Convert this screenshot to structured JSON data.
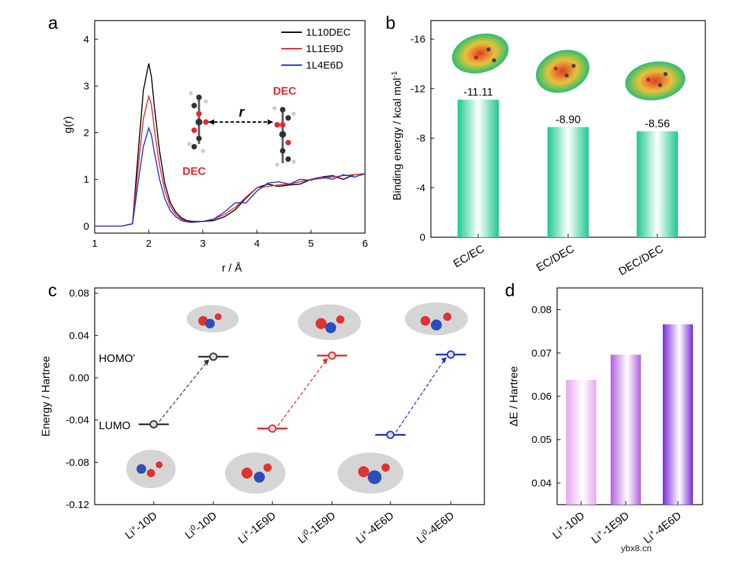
{
  "watermark": "ybx8.cn",
  "chart_data": [
    {
      "panel": "a",
      "type": "line",
      "xlabel": "r / Å",
      "ylabel": "g(r)",
      "xlim": [
        1,
        6
      ],
      "ylim": [
        -0.15,
        4.4
      ],
      "xticks": [
        "1",
        "2",
        "3",
        "4",
        "5",
        "6"
      ],
      "yticks": [
        "0",
        "1",
        "2",
        "3",
        "4"
      ],
      "inset": {
        "label_r": "r",
        "label_left": "DEC",
        "label_right": "DEC"
      },
      "series": [
        {
          "name": "1L10DEC",
          "color": "#000000",
          "x": [
            1.0,
            1.5,
            1.7,
            1.8,
            1.9,
            2.0,
            2.05,
            2.1,
            2.2,
            2.3,
            2.4,
            2.5,
            2.6,
            2.7,
            2.8,
            3.0,
            3.2,
            3.4,
            3.6,
            3.8,
            4.0,
            4.2,
            4.4,
            4.6,
            4.8,
            5.0,
            5.2,
            5.4,
            5.6,
            5.8,
            6.0
          ],
          "y": [
            0,
            0,
            0.05,
            1.5,
            2.9,
            3.48,
            3.2,
            2.6,
            1.6,
            0.9,
            0.5,
            0.3,
            0.18,
            0.12,
            0.1,
            0.1,
            0.12,
            0.2,
            0.35,
            0.6,
            0.82,
            0.9,
            0.85,
            0.88,
            0.9,
            1.0,
            1.05,
            1.08,
            1.0,
            1.1,
            1.12
          ]
        },
        {
          "name": "1L1E9D",
          "color": "#e8262a",
          "x": [
            1.0,
            1.5,
            1.7,
            1.8,
            1.9,
            2.0,
            2.05,
            2.1,
            2.2,
            2.3,
            2.4,
            2.5,
            2.6,
            2.7,
            2.8,
            3.0,
            3.2,
            3.4,
            3.6,
            3.8,
            4.0,
            4.2,
            4.4,
            4.6,
            4.8,
            5.0,
            5.2,
            5.4,
            5.6,
            5.8,
            6.0
          ],
          "y": [
            0,
            0,
            0.05,
            1.2,
            2.3,
            2.78,
            2.6,
            2.1,
            1.3,
            0.75,
            0.42,
            0.25,
            0.15,
            0.1,
            0.08,
            0.1,
            0.15,
            0.25,
            0.4,
            0.62,
            0.82,
            0.85,
            0.88,
            0.9,
            0.95,
            1.0,
            1.02,
            1.05,
            1.08,
            1.1,
            1.12
          ]
        },
        {
          "name": "1L4E6D",
          "color": "#1f2ee0",
          "x": [
            1.0,
            1.5,
            1.7,
            1.8,
            1.9,
            2.0,
            2.05,
            2.1,
            2.2,
            2.3,
            2.4,
            2.5,
            2.6,
            2.7,
            2.8,
            3.0,
            3.2,
            3.4,
            3.6,
            3.8,
            4.0,
            4.2,
            4.4,
            4.6,
            4.8,
            5.0,
            5.2,
            5.4,
            5.6,
            5.8,
            6.0
          ],
          "y": [
            0,
            0,
            0.05,
            0.9,
            1.7,
            2.1,
            1.95,
            1.6,
            1.0,
            0.58,
            0.33,
            0.2,
            0.12,
            0.09,
            0.08,
            0.1,
            0.15,
            0.3,
            0.5,
            0.5,
            0.75,
            0.92,
            0.95,
            0.9,
            1.0,
            0.98,
            1.05,
            1.0,
            1.1,
            1.05,
            1.12
          ]
        }
      ]
    },
    {
      "panel": "b",
      "type": "bar",
      "ylabel": "Binding energy /  kcal mol",
      "ylabel_sup": "-1",
      "ylim": [
        0,
        -17.5
      ],
      "yticks": [
        "0",
        "-4",
        "-8",
        "-12",
        "-16"
      ],
      "categories": [
        "EC/EC",
        "EC/DEC",
        "DEC/DEC"
      ],
      "values": [
        -11.11,
        -8.9,
        -8.56
      ],
      "labels": [
        "-11.11",
        "-8.90",
        "-8.56"
      ],
      "color": "#1dc98a"
    },
    {
      "panel": "c",
      "type": "scatter",
      "ylabel": "Energy / Hartree",
      "ylim": [
        -0.12,
        0.085
      ],
      "yticks": [
        "0.08",
        "0.04",
        "0.00",
        "-0.04",
        "-0.08",
        "-0.12"
      ],
      "level_labels": [
        "HOMO'",
        "LUMO"
      ],
      "categories": [
        {
          "main": "Li",
          "sup": "+",
          "rest": "-10D"
        },
        {
          "main": "Li",
          "sup": "0",
          "rest": "-10D"
        },
        {
          "main": "Li",
          "sup": "+",
          "rest": "-1E9D"
        },
        {
          "main": "Li",
          "sup": "0",
          "rest": "-1E9D"
        },
        {
          "main": "Li",
          "sup": "+",
          "rest": "-4E6D"
        },
        {
          "main": "Li",
          "sup": "0",
          "rest": "-4E6D"
        }
      ],
      "series": [
        {
          "name": "10D",
          "color": "#333333",
          "lumo": -0.044,
          "homo": 0.02
        },
        {
          "name": "1E9D",
          "color": "#e8262a",
          "lumo": -0.048,
          "homo": 0.021
        },
        {
          "name": "4E6D",
          "color": "#1f2ee0",
          "lumo": -0.054,
          "homo": 0.022
        }
      ]
    },
    {
      "panel": "d",
      "type": "bar",
      "ylabel": "ΔE / Hartree",
      "ylim": [
        0.035,
        0.085
      ],
      "yticks": [
        "0.08",
        "0.07",
        "0.06",
        "0.05",
        "0.04"
      ],
      "categories": [
        {
          "main": "Li",
          "sup": "+",
          "rest": "-10D"
        },
        {
          "main": "Li",
          "sup": "+",
          "rest": "-1E9D"
        },
        {
          "main": "Li",
          "sup": "+",
          "rest": "-4E6D"
        }
      ],
      "values": [
        0.0638,
        0.0696,
        0.0766
      ],
      "colors": [
        "#e6a8f0",
        "#b35fe0",
        "#7a2cd8"
      ]
    }
  ]
}
